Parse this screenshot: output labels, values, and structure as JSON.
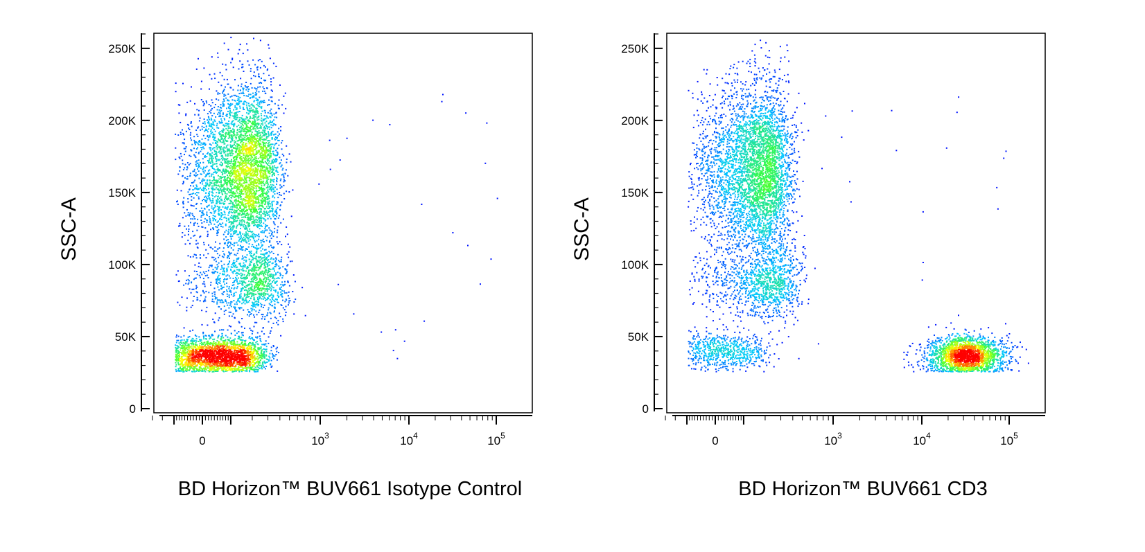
{
  "chart_data": [
    {
      "type": "scatter",
      "subtype": "flow-cytometry-density-dot-plot",
      "xlabel": "BD Horizon™ BUV661 Isotype Control",
      "ylabel": "SSC-A",
      "y_ticks": [
        "0",
        "50K",
        "100K",
        "150K",
        "200K",
        "250K"
      ],
      "y_tick_values": [
        0,
        50000,
        100000,
        150000,
        200000,
        250000
      ],
      "x_ticks": [
        {
          "base": "0",
          "exp": ""
        },
        {
          "base": "10",
          "exp": "3"
        },
        {
          "base": "10",
          "exp": "4"
        },
        {
          "base": "10",
          "exp": "5"
        }
      ],
      "x_tick_values": [
        0,
        1000,
        10000,
        100000
      ],
      "x_scale": "biexponential",
      "ylim": [
        0,
        262144
      ],
      "populations": [
        {
          "x_center": 150,
          "y_center": 165000,
          "x_spread": 110,
          "y_spread": 30000,
          "count": 4200,
          "peak": "red"
        },
        {
          "x_center": 200,
          "y_center": 88000,
          "x_spread": 130,
          "y_spread": 13000,
          "count": 1100,
          "peak": "cyan"
        },
        {
          "x_center": 50,
          "y_center": 37000,
          "x_spread": 110,
          "y_spread": 6500,
          "count": 2600,
          "peak": "red"
        }
      ]
    },
    {
      "type": "scatter",
      "subtype": "flow-cytometry-density-dot-plot",
      "xlabel": "BD Horizon™ BUV661 CD3",
      "ylabel": "SSC-A",
      "y_ticks": [
        "0",
        "50K",
        "100K",
        "150K",
        "200K",
        "250K"
      ],
      "y_tick_values": [
        0,
        50000,
        100000,
        150000,
        200000,
        250000
      ],
      "x_ticks": [
        {
          "base": "0",
          "exp": ""
        },
        {
          "base": "10",
          "exp": "3"
        },
        {
          "base": "10",
          "exp": "4"
        },
        {
          "base": "10",
          "exp": "5"
        }
      ],
      "x_tick_values": [
        0,
        1000,
        10000,
        100000
      ],
      "x_scale": "biexponential",
      "ylim": [
        0,
        262144
      ],
      "populations": [
        {
          "x_center": 150,
          "y_center": 165000,
          "x_spread": 110,
          "y_spread": 30000,
          "count": 4200,
          "peak": "red"
        },
        {
          "x_center": 200,
          "y_center": 88000,
          "x_spread": 130,
          "y_spread": 13000,
          "count": 1100,
          "peak": "cyan"
        },
        {
          "x_center": 20,
          "y_center": 40000,
          "x_spread": 90,
          "y_spread": 6500,
          "count": 700,
          "peak": "cyan"
        },
        {
          "x_center": 32000,
          "y_center": 37000,
          "x_spread": 0.22,
          "y_spread": 6500,
          "count": 2200,
          "peak": "red"
        }
      ]
    }
  ],
  "colors": {
    "density_low": "#0000ff",
    "density_mid": "#00c8ff",
    "density_midhigh": "#3cff3c",
    "density_high": "#ffff00",
    "density_peak": "#ff0000"
  }
}
